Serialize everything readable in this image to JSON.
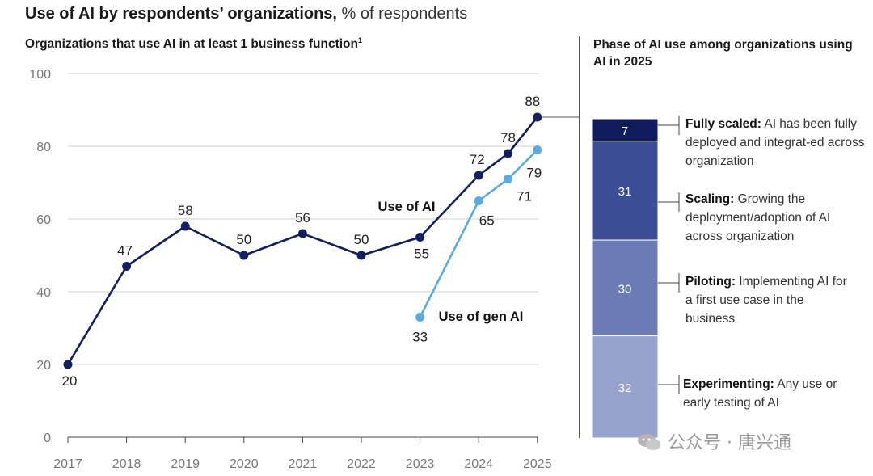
{
  "header": {
    "title_bold": "Use of AI by respondents’ organizations,",
    "title_rest": " % of respondents",
    "subtitle": "Organizations that use AI in at least 1 business function",
    "subtitle_footnote": "1"
  },
  "phase_panel": {
    "title": "Phase of AI use among organizations using AI in 2025",
    "segments": [
      {
        "value": 7,
        "label_value": "7",
        "name": "Fully scaled:",
        "desc": " AI has been fully deployed and integrat-ed across organization",
        "color": "#0f1b5c"
      },
      {
        "value": 31,
        "label_value": "31",
        "name": "Scaling:",
        "desc": " Growing the deployment/adoption of AI across organization",
        "color": "#3b4d94"
      },
      {
        "value": 30,
        "label_value": "30",
        "name": "Piloting:",
        "desc": " Implementing AI for a first use case in the business",
        "color": "#6b7cb4"
      },
      {
        "value": 32,
        "label_value": "32",
        "name": "Experimenting:",
        "desc": " Any use or early testing of AI",
        "color": "#97a3cc"
      }
    ]
  },
  "chart_data": {
    "type": "line",
    "title": "Use of AI by respondents’ organizations, % of respondents",
    "subtitle": "Organizations that use AI in at least 1 business function",
    "xlabel": "",
    "ylabel": "",
    "ylim": [
      0,
      100
    ],
    "yticks": [
      "0",
      "20",
      "40",
      "60",
      "80",
      "100"
    ],
    "xticks": [
      "2017",
      "2018",
      "2019",
      "2020",
      "2021",
      "2022",
      "2023",
      "2024",
      "2025"
    ],
    "grid": true,
    "series": [
      {
        "name": "Use of AI",
        "color": "#131f5e",
        "points": [
          {
            "x": 2017,
            "y": 20,
            "label": "20"
          },
          {
            "x": 2018,
            "y": 47,
            "label": "47"
          },
          {
            "x": 2019,
            "y": 58,
            "label": "58"
          },
          {
            "x": 2020,
            "y": 50,
            "label": "50"
          },
          {
            "x": 2021,
            "y": 56,
            "label": "56"
          },
          {
            "x": 2022,
            "y": 50,
            "label": "50"
          },
          {
            "x": 2023,
            "y": 55,
            "label": "55"
          },
          {
            "x": 2024,
            "y": 72,
            "label": "72"
          },
          {
            "x": 2024.5,
            "y": 78,
            "label": "78"
          },
          {
            "x": 2025,
            "y": 88,
            "label": "88"
          }
        ]
      },
      {
        "name": "Use of gen AI",
        "color": "#5aabe0",
        "points": [
          {
            "x": 2023,
            "y": 33,
            "label": "33"
          },
          {
            "x": 2024,
            "y": 65,
            "label": "65"
          },
          {
            "x": 2024.5,
            "y": 71,
            "label": "71"
          },
          {
            "x": 2025,
            "y": 79,
            "label": "79"
          }
        ]
      }
    ]
  },
  "watermark": "公众号 · 唐兴通"
}
